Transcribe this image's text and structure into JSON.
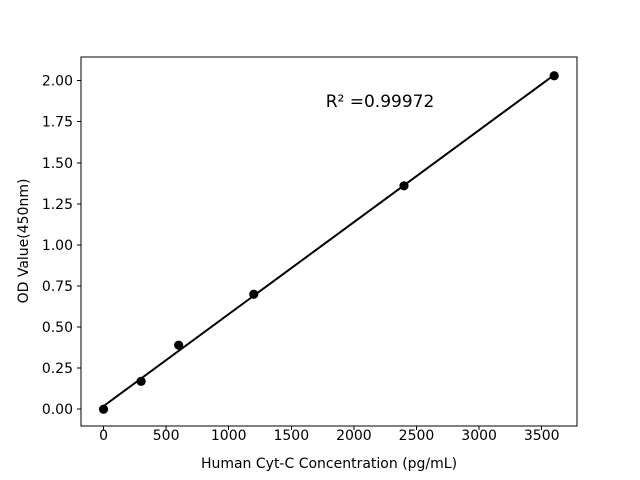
{
  "figure": {
    "background": "#ffffff",
    "foreground": "#000000"
  },
  "chart_data": {
    "type": "scatter",
    "xlabel": "Human Cyt-C Concentration (pg/mL)",
    "ylabel": "OD Value(450nm)",
    "annotation": "R² =0.99972",
    "r_squared": 0.99972,
    "marker_color": "#000000",
    "line_color": "#000000",
    "points": [
      {
        "x": 0,
        "y": 0.0
      },
      {
        "x": 300,
        "y": 0.17
      },
      {
        "x": 600,
        "y": 0.39
      },
      {
        "x": 1200,
        "y": 0.7
      },
      {
        "x": 2400,
        "y": 1.36
      },
      {
        "x": 3600,
        "y": 2.03
      }
    ],
    "fit_line": {
      "x1": 0,
      "y1": 0.019,
      "x2": 3600,
      "y2": 2.035
    },
    "xlim": [
      -180,
      3782
    ],
    "ylim": [
      -0.102,
      2.144
    ],
    "xticks": [
      {
        "value": 0,
        "label": "0"
      },
      {
        "value": 500,
        "label": "500"
      },
      {
        "value": 1000,
        "label": "1000"
      },
      {
        "value": 1500,
        "label": "1500"
      },
      {
        "value": 2000,
        "label": "2000"
      },
      {
        "value": 2500,
        "label": "2500"
      },
      {
        "value": 3000,
        "label": "3000"
      },
      {
        "value": 3500,
        "label": "3500"
      }
    ],
    "yticks": [
      {
        "value": 0.0,
        "label": "0.00"
      },
      {
        "value": 0.25,
        "label": "0.25"
      },
      {
        "value": 0.5,
        "label": "0.50"
      },
      {
        "value": 0.75,
        "label": "0.75"
      },
      {
        "value": 1.0,
        "label": "1.00"
      },
      {
        "value": 1.25,
        "label": "1.25"
      },
      {
        "value": 1.5,
        "label": "1.50"
      },
      {
        "value": 1.75,
        "label": "1.75"
      },
      {
        "value": 2.0,
        "label": "2.00"
      }
    ],
    "grid": false,
    "legend_position": "none"
  }
}
